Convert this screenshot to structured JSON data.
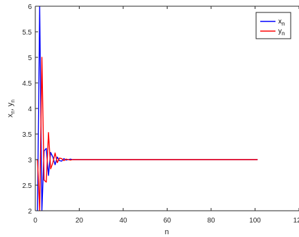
{
  "chart_data": {
    "type": "line",
    "title": "",
    "xlabel": "n",
    "ylabel": "x_n, y_n",
    "xlim": [
      0,
      120
    ],
    "ylim": [
      2,
      6
    ],
    "xticks": [
      0,
      20,
      40,
      60,
      80,
      100,
      120
    ],
    "xtick_labels": [
      "0",
      "20",
      "40",
      "60",
      "80",
      "100",
      "120"
    ],
    "yticks": [
      2,
      2.5,
      3,
      3.5,
      4,
      4.5,
      5,
      5.5,
      6
    ],
    "ytick_labels": [
      "2",
      "2.5",
      "3",
      "3.5",
      "4",
      "4.5",
      "5",
      "5.5",
      "6"
    ],
    "grid": false,
    "legend_position": "top-right",
    "series": [
      {
        "name": "x_n",
        "label_main": "x",
        "label_sub": "n",
        "color": "#0000ff",
        "x": [
          1,
          2,
          3,
          4,
          5,
          6,
          7,
          8,
          9,
          10,
          11,
          12,
          13,
          14,
          15,
          16,
          17,
          18,
          19,
          20,
          101
        ],
        "y": [
          2.0,
          6.0,
          2.0,
          3.17,
          3.22,
          2.69,
          3.14,
          3.05,
          2.9,
          3.05,
          2.98,
          2.97,
          3.02,
          2.99,
          3.0,
          3.01,
          3.0,
          3.0,
          3.0,
          3.0,
          3.0
        ]
      },
      {
        "name": "y_n",
        "label_main": "y",
        "label_sub": "n",
        "color": "#ff0000",
        "x": [
          1,
          2,
          3,
          4,
          5,
          6,
          7,
          8,
          9,
          10,
          11,
          12,
          13,
          14,
          15,
          16,
          17,
          18,
          19,
          20,
          101
        ],
        "y": [
          3.0,
          2.0,
          5.0,
          2.6,
          2.56,
          3.53,
          2.82,
          2.94,
          3.13,
          2.94,
          3.03,
          3.02,
          2.98,
          3.01,
          3.0,
          2.99,
          3.0,
          3.0,
          3.0,
          3.0,
          3.0
        ]
      }
    ]
  }
}
